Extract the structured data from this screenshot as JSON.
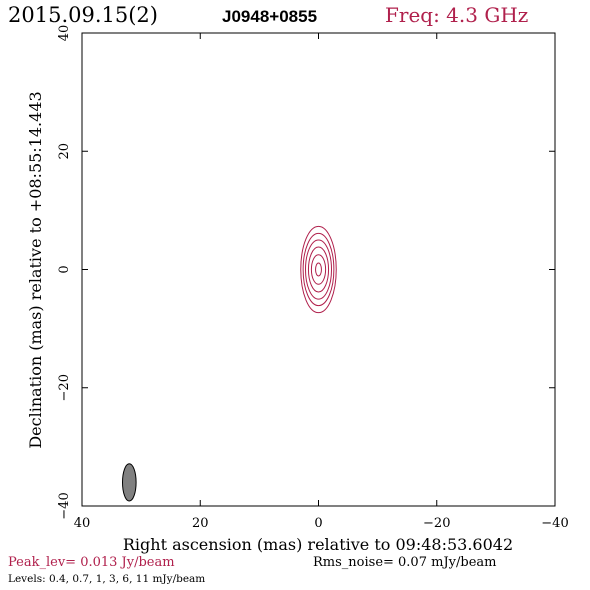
{
  "header": {
    "date": "2015.09.15(2)",
    "source": "J0948+0855",
    "freq": "Freq: 4.3 GHz"
  },
  "footer": {
    "peak": "Peak_lev=  0.013 Jy/beam",
    "rms": "Rms_noise= 0.07 mJy/beam",
    "levels": "Levels: 0.4, 0.7,   1,   3,   6,  11 mJy/beam"
  },
  "colors": {
    "accent": "#b0204c",
    "contour": "#b0204c",
    "beam": "#808080"
  },
  "chart_data": {
    "type": "contour",
    "xlabel": "Right ascension (mas) relative to 09:48:53.6042",
    "ylabel": "Declination (mas) relative to +08:55:14.443",
    "xlim": [
      40,
      -40
    ],
    "ylim": [
      -40,
      40
    ],
    "x_ticks": [
      40,
      20,
      0,
      -20,
      -40
    ],
    "y_ticks": [
      -40,
      -20,
      0,
      20,
      40
    ],
    "x_tick_labels": [
      "40",
      "20",
      "0",
      "−20",
      "−40"
    ],
    "y_tick_labels": [
      "−40",
      "−20",
      "0",
      "20",
      "40"
    ],
    "peak_jy_per_beam": 0.013,
    "rms_noise_mjy_per_beam": 0.07,
    "levels_mjy_per_beam": [
      0.4,
      0.7,
      1,
      3,
      6,
      11
    ],
    "source_center": [
      0.0,
      0.0
    ],
    "contours": [
      {
        "level": 0.4,
        "rx": 3.0,
        "ry": 7.3
      },
      {
        "level": 0.7,
        "rx": 2.6,
        "ry": 6.1
      },
      {
        "level": 1,
        "rx": 2.2,
        "ry": 5.0
      },
      {
        "level": 3,
        "rx": 1.7,
        "ry": 3.8
      },
      {
        "level": 6,
        "rx": 1.2,
        "ry": 2.5
      },
      {
        "level": 11,
        "rx": 0.5,
        "ry": 1.1
      }
    ],
    "beam": {
      "x": 32.0,
      "y": -36.0,
      "major": 6.3,
      "minor": 2.3,
      "pa_deg": 0
    }
  }
}
